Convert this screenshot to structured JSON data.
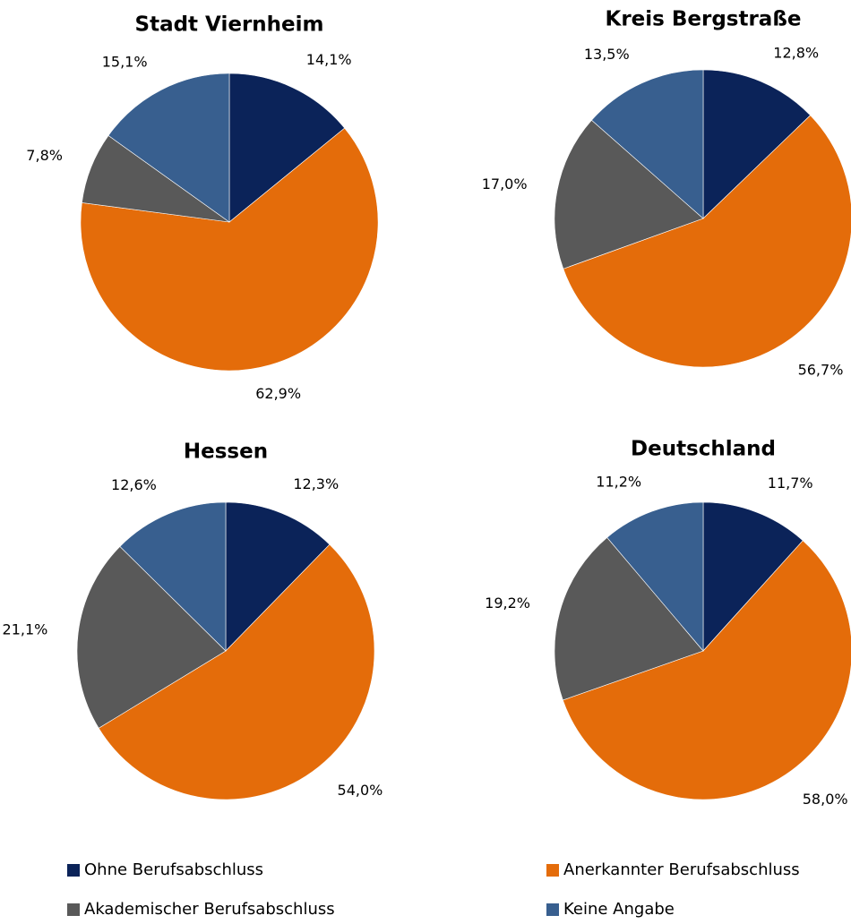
{
  "chart_data": [
    {
      "type": "pie",
      "title": "Stadt Viernheim",
      "categories": [
        "Ohne Berufsabschluss",
        "Anerkannter Berufsabschluss",
        "Akademischer Berufsabschluss",
        "Keine Angabe"
      ],
      "values": [
        14.1,
        62.9,
        7.8,
        15.1
      ],
      "value_labels": [
        "14,1%",
        "62,9%",
        "7,8%",
        "15,1%"
      ],
      "colors": [
        "#0b2359",
        "#e46c0a",
        "#595959",
        "#385f8f"
      ]
    },
    {
      "type": "pie",
      "title": "Kreis Bergstraße",
      "categories": [
        "Ohne Berufsabschluss",
        "Anerkannter Berufsabschluss",
        "Akademischer Berufsabschluss",
        "Keine Angabe"
      ],
      "values": [
        12.8,
        56.7,
        17.0,
        13.5
      ],
      "value_labels": [
        "12,8%",
        "56,7%",
        "17,0%",
        "13,5%"
      ],
      "colors": [
        "#0b2359",
        "#e46c0a",
        "#595959",
        "#385f8f"
      ]
    },
    {
      "type": "pie",
      "title": "Hessen",
      "categories": [
        "Ohne Berufsabschluss",
        "Anerkannter Berufsabschluss",
        "Akademischer Berufsabschluss",
        "Keine Angabe"
      ],
      "values": [
        12.3,
        54.0,
        21.1,
        12.6
      ],
      "value_labels": [
        "12,3%",
        "54,0%",
        "21,1%",
        "12,6%"
      ],
      "colors": [
        "#0b2359",
        "#e46c0a",
        "#595959",
        "#385f8f"
      ]
    },
    {
      "type": "pie",
      "title": "Deutschland",
      "categories": [
        "Ohne Berufsabschluss",
        "Anerkannter Berufsabschluss",
        "Akademischer Berufsabschluss",
        "Keine Angabe"
      ],
      "values": [
        11.7,
        58.0,
        19.2,
        11.2
      ],
      "value_labels": [
        "11,7%",
        "58,0%",
        "19,2%",
        "11,2%"
      ],
      "colors": [
        "#0b2359",
        "#e46c0a",
        "#595959",
        "#385f8f"
      ]
    }
  ]
}
